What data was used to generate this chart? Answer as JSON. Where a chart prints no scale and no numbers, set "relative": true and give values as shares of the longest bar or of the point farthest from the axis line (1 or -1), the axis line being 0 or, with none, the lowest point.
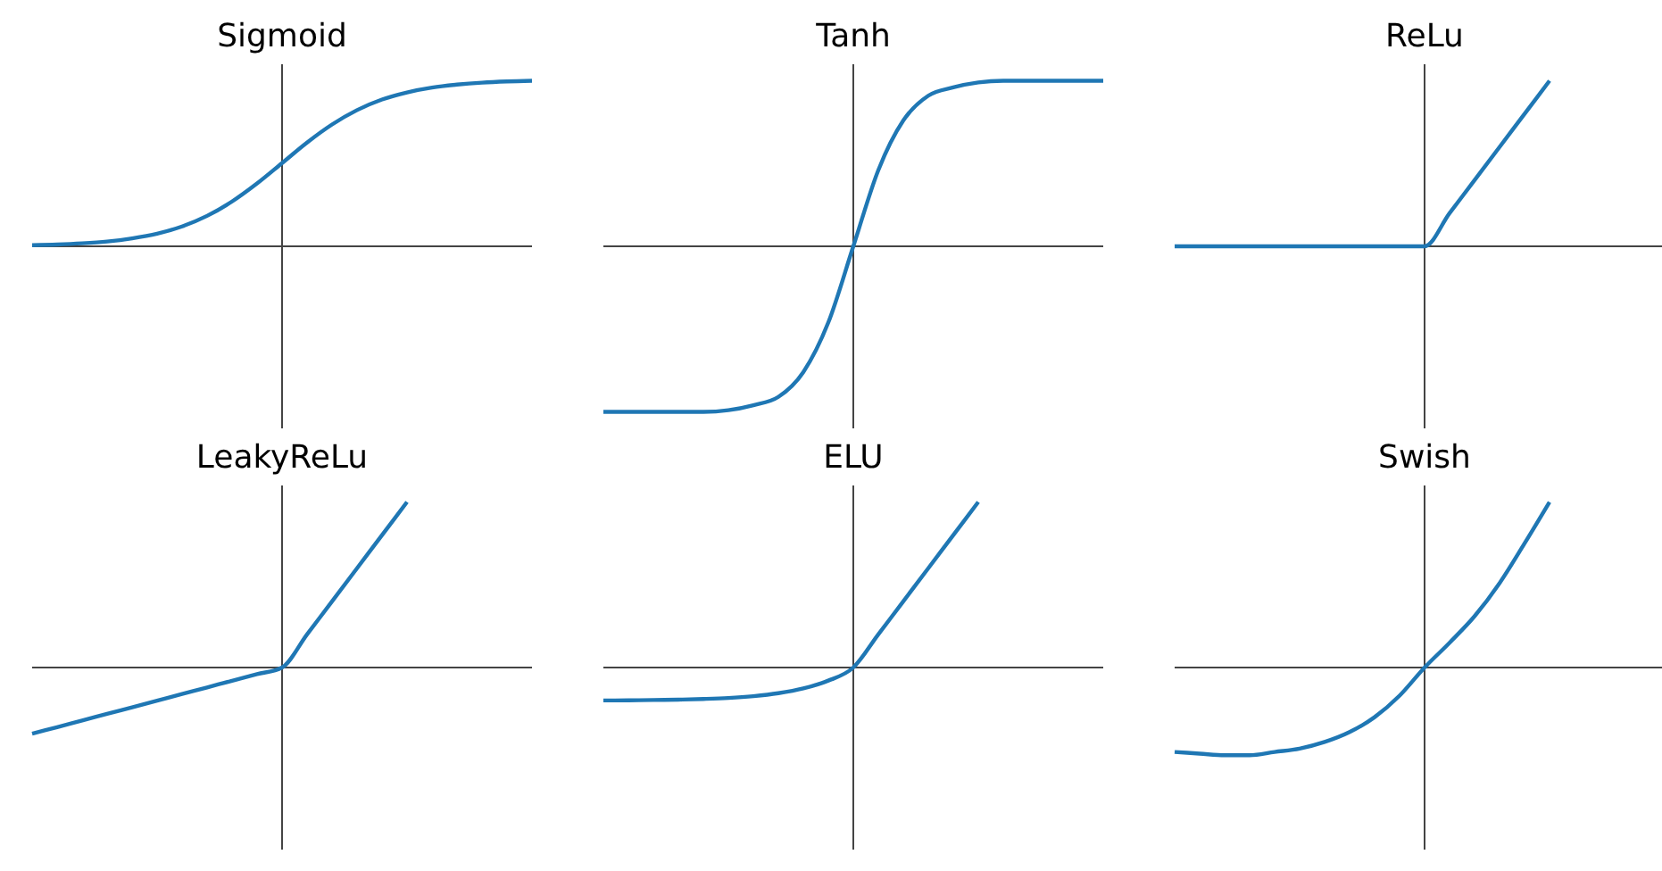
{
  "chart_data": [
    {
      "type": "line",
      "title": "Sigmoid",
      "relative": true,
      "categories": [
        null,
        null,
        null,
        null,
        null,
        null,
        null,
        null,
        null,
        null,
        null,
        null,
        null,
        null,
        null,
        null,
        null,
        null,
        null,
        null,
        null
      ],
      "series": [
        {
          "color": "#1f77b4",
          "values": [
            0.007,
            0.011,
            0.018,
            0.029,
            0.048,
            0.076,
            0.12,
            0.184,
            0.271,
            0.38,
            0.503,
            0.627,
            0.736,
            0.823,
            0.887,
            0.93,
            0.959,
            0.977,
            0.989,
            0.996,
            1
          ]
        }
      ]
    },
    {
      "type": "line",
      "title": "Tanh",
      "relative": true,
      "categories": [
        null,
        null,
        null,
        null,
        null,
        null,
        null,
        null,
        null,
        null,
        null,
        null,
        null,
        null,
        null,
        null,
        null,
        null,
        null,
        null,
        null
      ],
      "series": [
        {
          "color": "#1f77b4",
          "values": [
            -1,
            -1,
            -1,
            -1,
            -1,
            -0.99,
            -0.96,
            -0.91,
            -0.76,
            -0.46,
            0,
            0.46,
            0.76,
            0.91,
            0.96,
            0.99,
            1,
            1,
            1,
            1,
            1
          ]
        }
      ]
    },
    {
      "type": "line",
      "title": "ReLu",
      "relative": true,
      "categories": [
        null,
        null,
        null,
        null,
        null,
        null,
        null,
        null,
        null,
        null,
        null,
        null,
        null,
        null,
        null,
        null,
        null,
        null,
        null,
        null,
        null
      ],
      "series": [
        {
          "color": "#1f77b4",
          "values": [
            0,
            0,
            0,
            0,
            0,
            0,
            0,
            0,
            0,
            0,
            0,
            0.2,
            0.4,
            0.6,
            0.8,
            1,
            null,
            null,
            null,
            null,
            null
          ]
        }
      ]
    },
    {
      "type": "line",
      "title": "LeakyReLu",
      "relative": true,
      "categories": [
        null,
        null,
        null,
        null,
        null,
        null,
        null,
        null,
        null,
        null,
        null,
        null,
        null,
        null,
        null,
        null,
        null,
        null,
        null,
        null,
        null
      ],
      "series": [
        {
          "color": "#1f77b4",
          "values": [
            -0.4,
            -0.36,
            -0.32,
            -0.28,
            -0.24,
            -0.2,
            -0.16,
            -0.12,
            -0.08,
            -0.04,
            0,
            0.2,
            0.4,
            0.6,
            0.8,
            1,
            null,
            null,
            null,
            null,
            null
          ]
        }
      ]
    },
    {
      "type": "line",
      "title": "ELU",
      "relative": true,
      "categories": [
        null,
        null,
        null,
        null,
        null,
        null,
        null,
        null,
        null,
        null,
        null,
        null,
        null,
        null,
        null,
        null,
        null,
        null,
        null,
        null,
        null
      ],
      "series": [
        {
          "color": "#1f77b4",
          "values": [
            -0.199,
            -0.198,
            -0.196,
            -0.194,
            -0.19,
            -0.184,
            -0.173,
            -0.155,
            -0.126,
            -0.079,
            0,
            0.2,
            0.4,
            0.6,
            0.8,
            1,
            null,
            null,
            null,
            null,
            null
          ]
        }
      ]
    },
    {
      "type": "line",
      "title": "Swish",
      "relative": true,
      "categories": [
        null,
        null,
        null,
        null,
        null,
        null,
        null,
        null,
        null,
        null,
        null,
        null,
        null,
        null,
        null,
        null,
        null,
        null,
        null,
        null,
        null
      ],
      "series": [
        {
          "color": "#1f77b4",
          "values": [
            -0.51,
            -0.52,
            -0.53,
            -0.53,
            -0.51,
            -0.49,
            -0.45,
            -0.39,
            -0.3,
            -0.17,
            0,
            0.15,
            0.31,
            0.51,
            0.75,
            1,
            null,
            null,
            null,
            null,
            null
          ]
        }
      ]
    }
  ]
}
